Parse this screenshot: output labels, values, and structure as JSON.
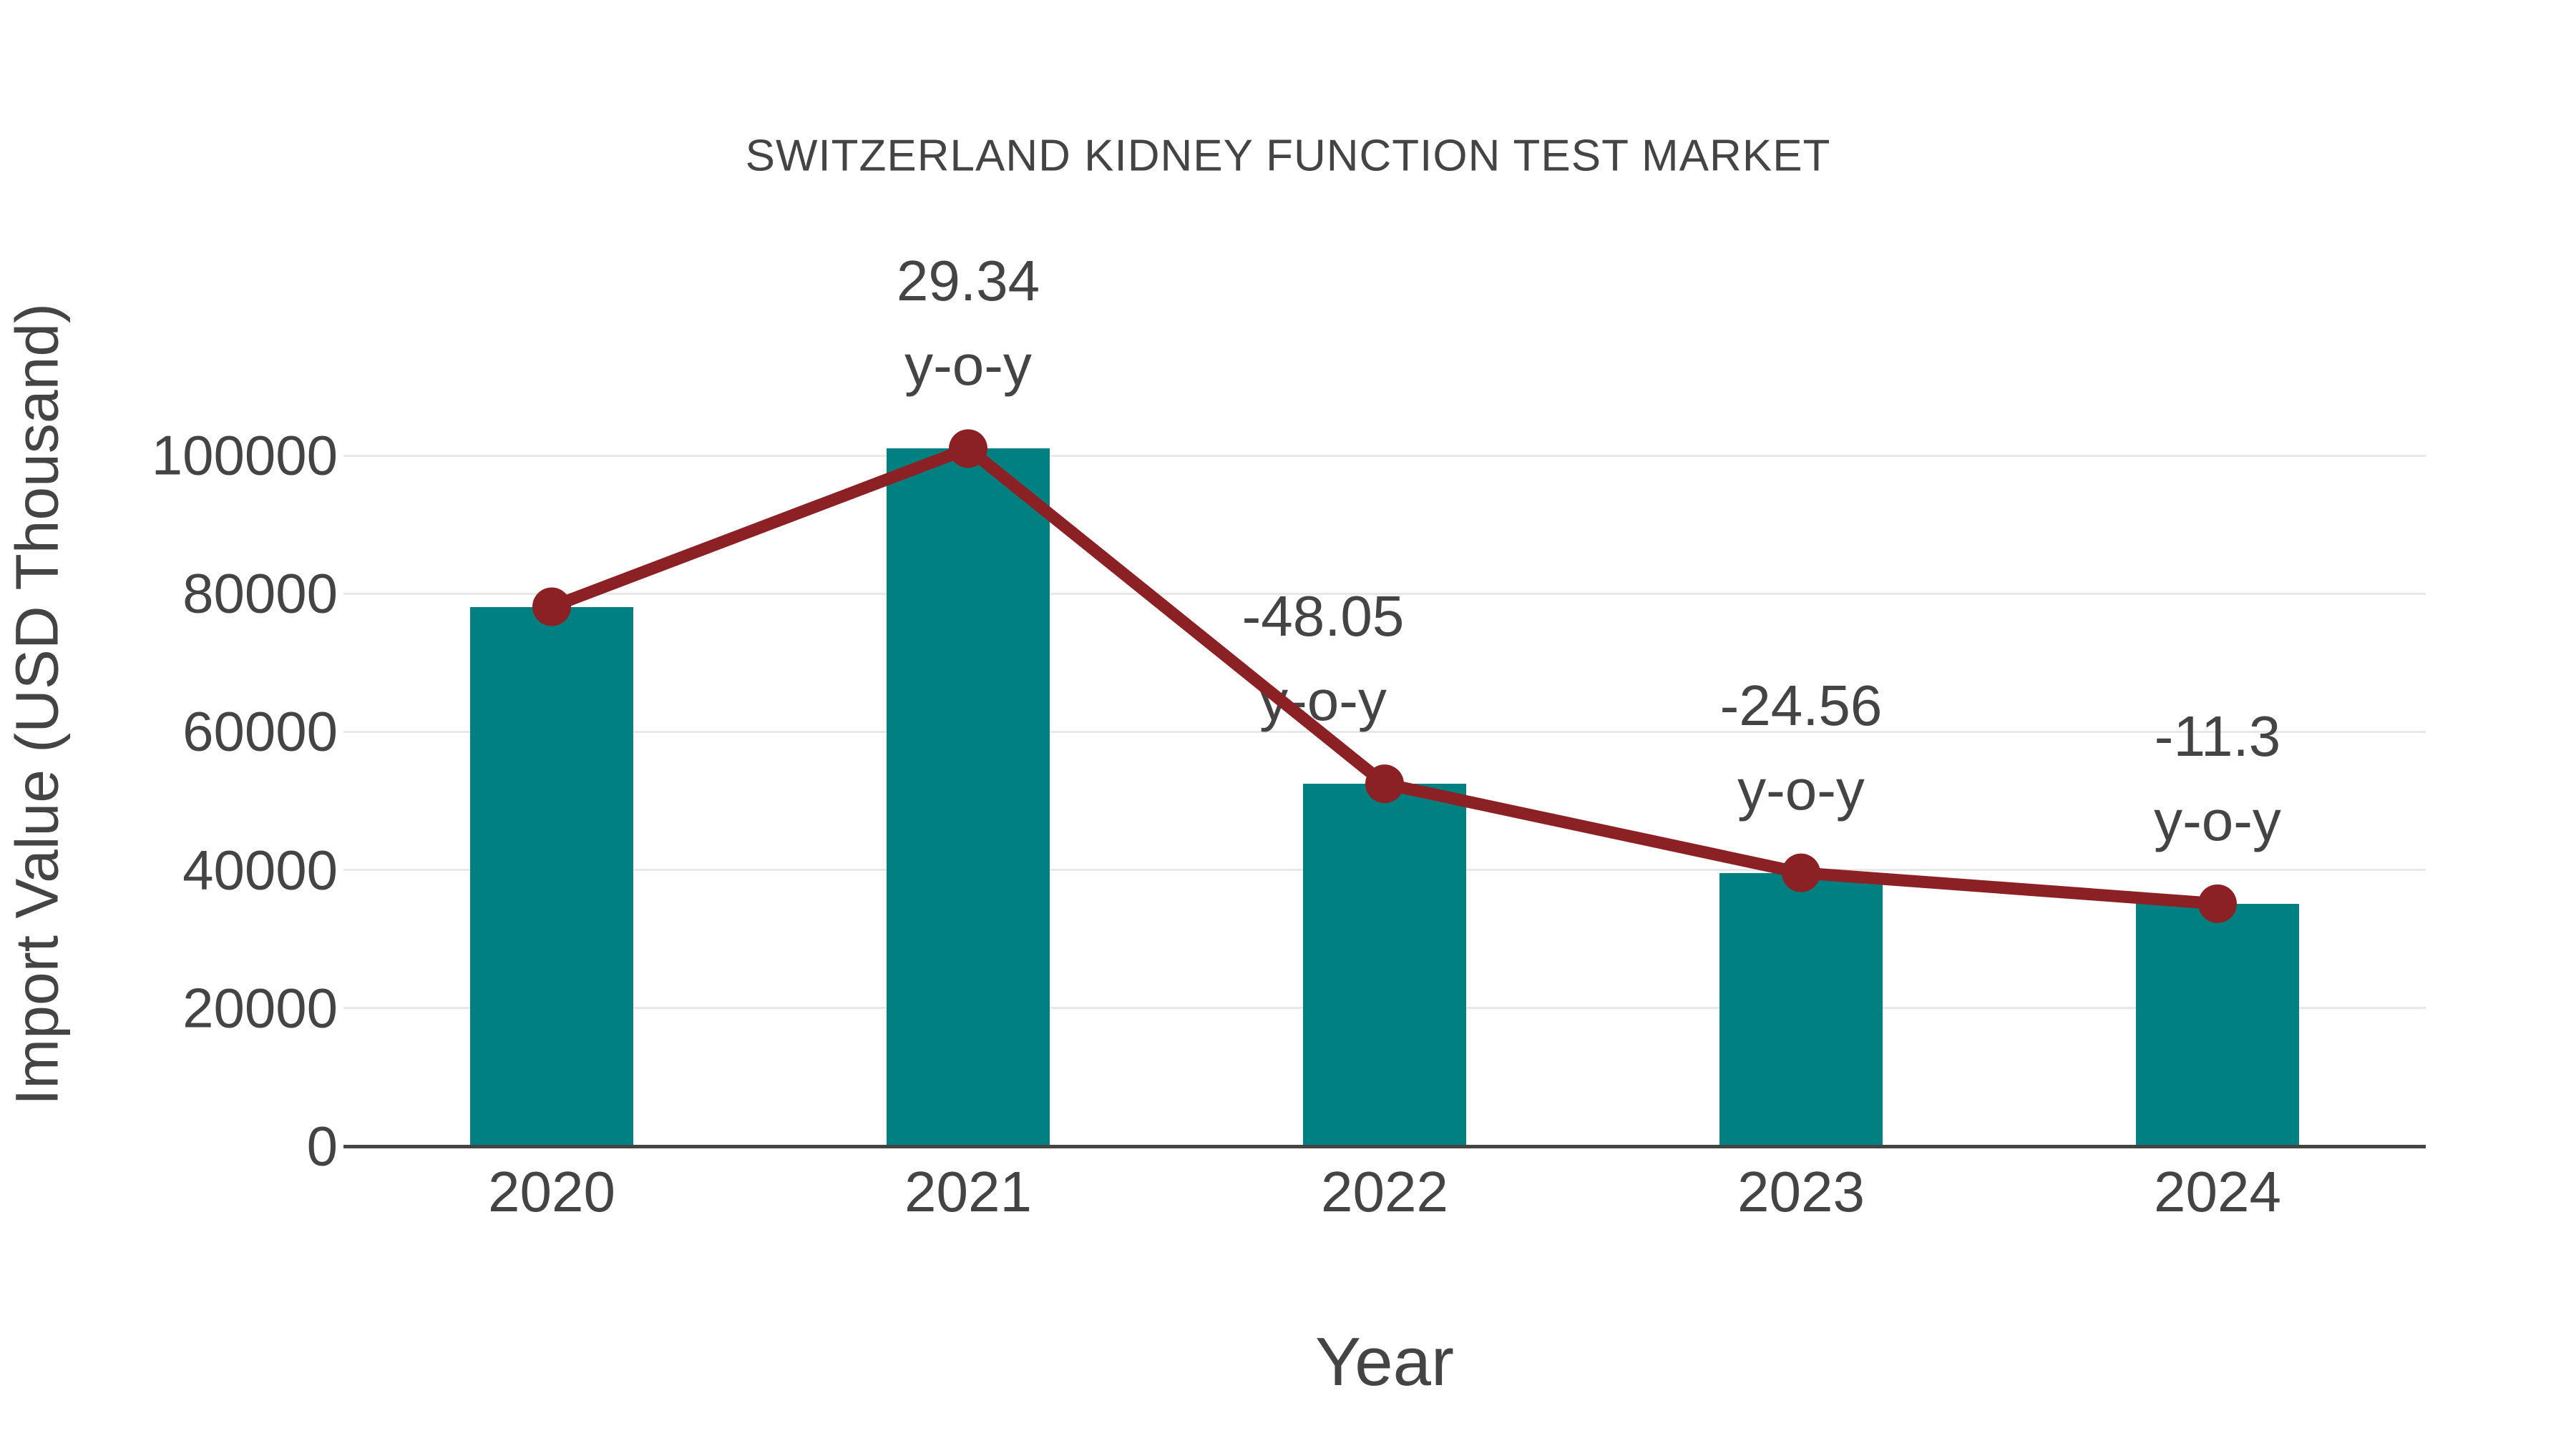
{
  "title": "SWITZERLAND KIDNEY FUNCTION TEST MARKET",
  "chart_data": {
    "type": "bar",
    "title": "SWITZERLAND KIDNEY FUNCTION TEST MARKET",
    "xlabel": "Year",
    "ylabel": "Import Value (USD Thousand)",
    "categories": [
      "2020",
      "2021",
      "2022",
      "2023",
      "2024"
    ],
    "series": [
      {
        "name": "Import Value",
        "type": "bar",
        "values": [
          78100,
          101000,
          52470,
          39580,
          35110
        ]
      },
      {
        "name": "y-o-y trend line",
        "type": "line",
        "values": [
          78100,
          101000,
          52470,
          39580,
          35110
        ]
      }
    ],
    "yoy_percent": [
      null,
      29.34,
      -48.05,
      -24.56,
      -11.3
    ],
    "annotations": [
      {
        "category": "2021",
        "line1": "29.34",
        "line2": "y-o-y"
      },
      {
        "category": "2022",
        "line1": "-48.05",
        "line2": "y-o-y"
      },
      {
        "category": "2023",
        "line1": "-24.56",
        "line2": "y-o-y"
      },
      {
        "category": "2024",
        "line1": "-11.3",
        "line2": "y-o-y"
      }
    ],
    "yticks": [
      0,
      20000,
      40000,
      60000,
      80000,
      100000
    ],
    "ylim": [
      0,
      100000
    ],
    "grid": true,
    "legend": "none",
    "colors": {
      "bar": "#008080",
      "line": "#8B2124",
      "text": "#444444",
      "grid": "#e8e8e8",
      "axis": "#444444",
      "background": "#ffffff"
    }
  }
}
